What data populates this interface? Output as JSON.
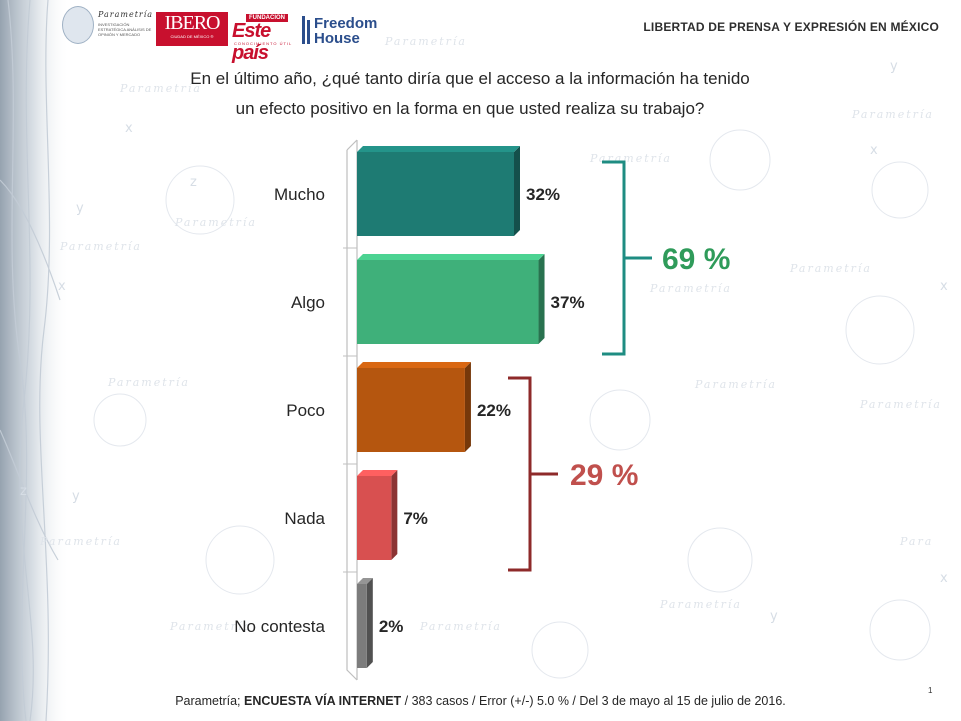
{
  "header": {
    "title": "LIBERTAD DE PRENSA Y EXPRESIÓN EN MÉXICO",
    "logos": {
      "parametria_name": "Parametría",
      "parametria_tagline": "INVESTIGACIÓN ESTRATÉGICA ANÁLISIS DE OPINIÓN Y MERCADO",
      "ibero": "IBERO",
      "ibero_sub": "CIUDAD DE MÉXICO ®",
      "estepais_fundacion": "FUNDACIÓN",
      "estepais": "Este país",
      "estepais_sub": "CONOCIMIENTO ÚTIL",
      "freedom_line1": "Freedom",
      "freedom_line2": "House"
    }
  },
  "question": {
    "line1": "En el último año, ¿qué tanto diría que el acceso a la información ha tenido",
    "line2": "un efecto positivo en la forma en que usted realiza su trabajo?"
  },
  "chart_data": {
    "type": "bar",
    "orientation": "horizontal",
    "categories": [
      "Mucho",
      "Algo",
      "Poco",
      "Nada",
      "No contesta"
    ],
    "values": [
      32,
      37,
      22,
      7,
      2
    ],
    "value_labels": [
      "32%",
      "37%",
      "22%",
      "7%",
      "2%"
    ],
    "bar_colors": [
      "#1e7b73",
      "#3fb07a",
      "#b5560f",
      "#d85050",
      "#7c7c7c"
    ],
    "xlim": [
      0,
      100
    ],
    "groups": [
      {
        "label": "69 %",
        "categories": [
          "Mucho",
          "Algo"
        ],
        "color": "#1e8c82",
        "label_color": "#2f9b5a"
      },
      {
        "label": "29 %",
        "categories": [
          "Poco",
          "Nada"
        ],
        "color": "#8e2a2a",
        "label_color": "#c0504d"
      }
    ]
  },
  "footer": {
    "pre": "Parametría; ",
    "bold": "ENCUESTA VÍA INTERNET",
    "post": " /  383 casos / Error (+/-) 5.0 % / Del 3 de mayo al 15 de julio de 2016."
  },
  "page_number": "1"
}
